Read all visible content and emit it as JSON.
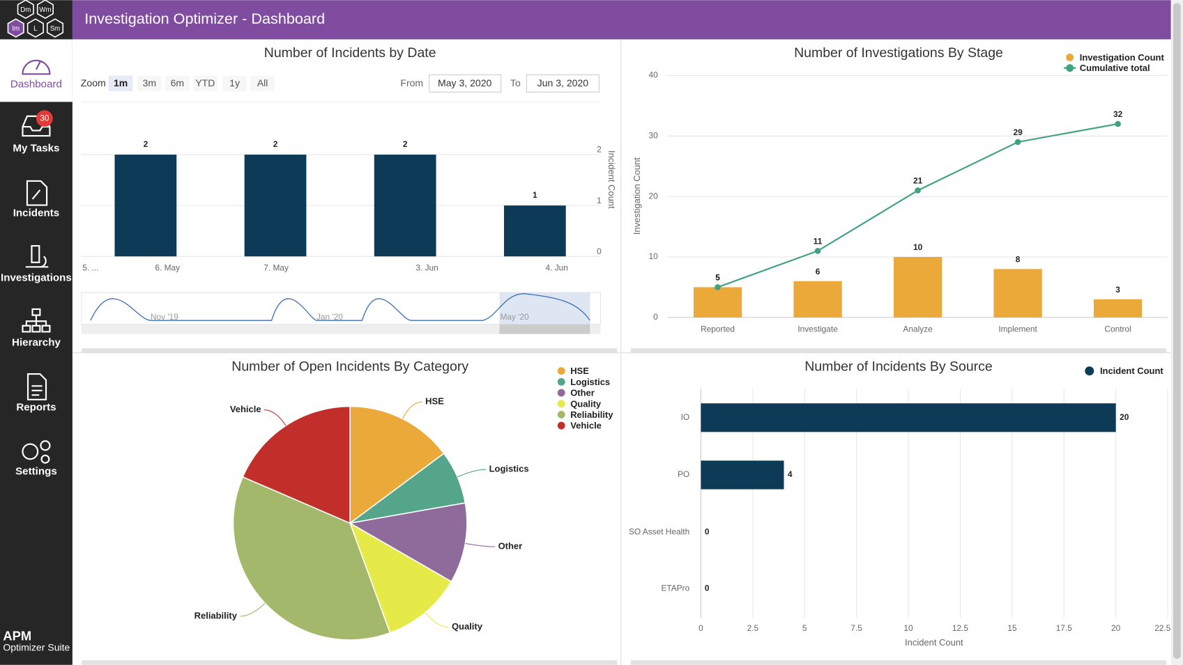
{
  "header": {
    "title": "Investigation Optimizer - Dashboard",
    "logo": [
      "Dm",
      "Wm",
      "Im",
      "L",
      "Sm"
    ]
  },
  "sidebar": {
    "items": [
      {
        "label": "Dashboard",
        "active": true
      },
      {
        "label": "My Tasks",
        "badge": 30
      },
      {
        "label": "Incidents"
      },
      {
        "label": "Investigations"
      },
      {
        "label": "Hierarchy"
      },
      {
        "label": "Reports"
      },
      {
        "label": "Settings"
      }
    ],
    "footer": [
      "APM",
      "Optimizer Suite"
    ]
  },
  "chart_data": [
    {
      "type": "bar",
      "title": "Number of Incidents by Date",
      "zoom": {
        "label": "Zoom",
        "buttons": [
          {
            "label": "1m",
            "selected": true
          },
          {
            "label": "3m"
          },
          {
            "label": "6m"
          },
          {
            "label": "YTD"
          },
          {
            "label": "1y"
          },
          {
            "label": "All"
          }
        ]
      },
      "range": {
        "from_label": "From",
        "from": "May 3, 2020",
        "to_label": "To",
        "to": "Jun 3, 2020"
      },
      "x_labels": [
        "5. ...",
        "6. May",
        "7. May",
        "3. Jun",
        "4. Jun"
      ],
      "categories": [
        null,
        null,
        null,
        null
      ],
      "values": [
        2,
        2,
        2,
        1
      ],
      "color": "#0d3a56",
      "ylabel": "Incident Count",
      "ylim": [
        0,
        2
      ],
      "yticks": [
        0,
        1,
        2
      ],
      "grid": true,
      "navigator_labels": [
        "Nov '19",
        "Jan '20",
        "May '20"
      ]
    },
    {
      "type": "combo",
      "title": "Number of Investigations By Stage",
      "categories": [
        "Reported",
        "Investigate",
        "Analyze",
        "Implement",
        "Control"
      ],
      "series": [
        {
          "name": "Investigation Count",
          "type": "bar",
          "color": "#eba93a",
          "values": [
            5,
            6,
            10,
            8,
            3
          ]
        },
        {
          "name": "Cumulative total",
          "type": "line",
          "color": "#3fa283",
          "values": [
            5,
            11,
            21,
            29,
            32
          ]
        }
      ],
      "ylabel": "Investigation Count",
      "ylim": [
        0,
        40
      ],
      "yticks": [
        0,
        10,
        20,
        30,
        40
      ],
      "grid": true,
      "legend": "top-right"
    },
    {
      "type": "pie",
      "title": "Number of Open Incidents By Category",
      "categories": [
        "HSE",
        "Logistics",
        "Other",
        "Quality",
        "Reliability",
        "Vehicle"
      ],
      "values": [
        4,
        2,
        3,
        3,
        10,
        5
      ],
      "colors": [
        "#eba93a",
        "#55a58b",
        "#8e6b9a",
        "#e6ea48",
        "#a4b86c",
        "#c22f2a"
      ],
      "legend": "top-right"
    },
    {
      "type": "hbar",
      "title": "Number of Incidents By Source",
      "categories": [
        "IO",
        "PO",
        "SO Asset Health",
        "ETAPro"
      ],
      "series": [
        {
          "name": "Incident Count",
          "color": "#0d3a56",
          "values": [
            20,
            4,
            0,
            0
          ]
        }
      ],
      "xlabel": "Incident Count",
      "xlim": [
        0,
        22.5
      ],
      "xticks": [
        0,
        2.5,
        5,
        7.5,
        10,
        12.5,
        15,
        17.5,
        20,
        22.5
      ],
      "grid": true,
      "legend": "top-right"
    }
  ]
}
